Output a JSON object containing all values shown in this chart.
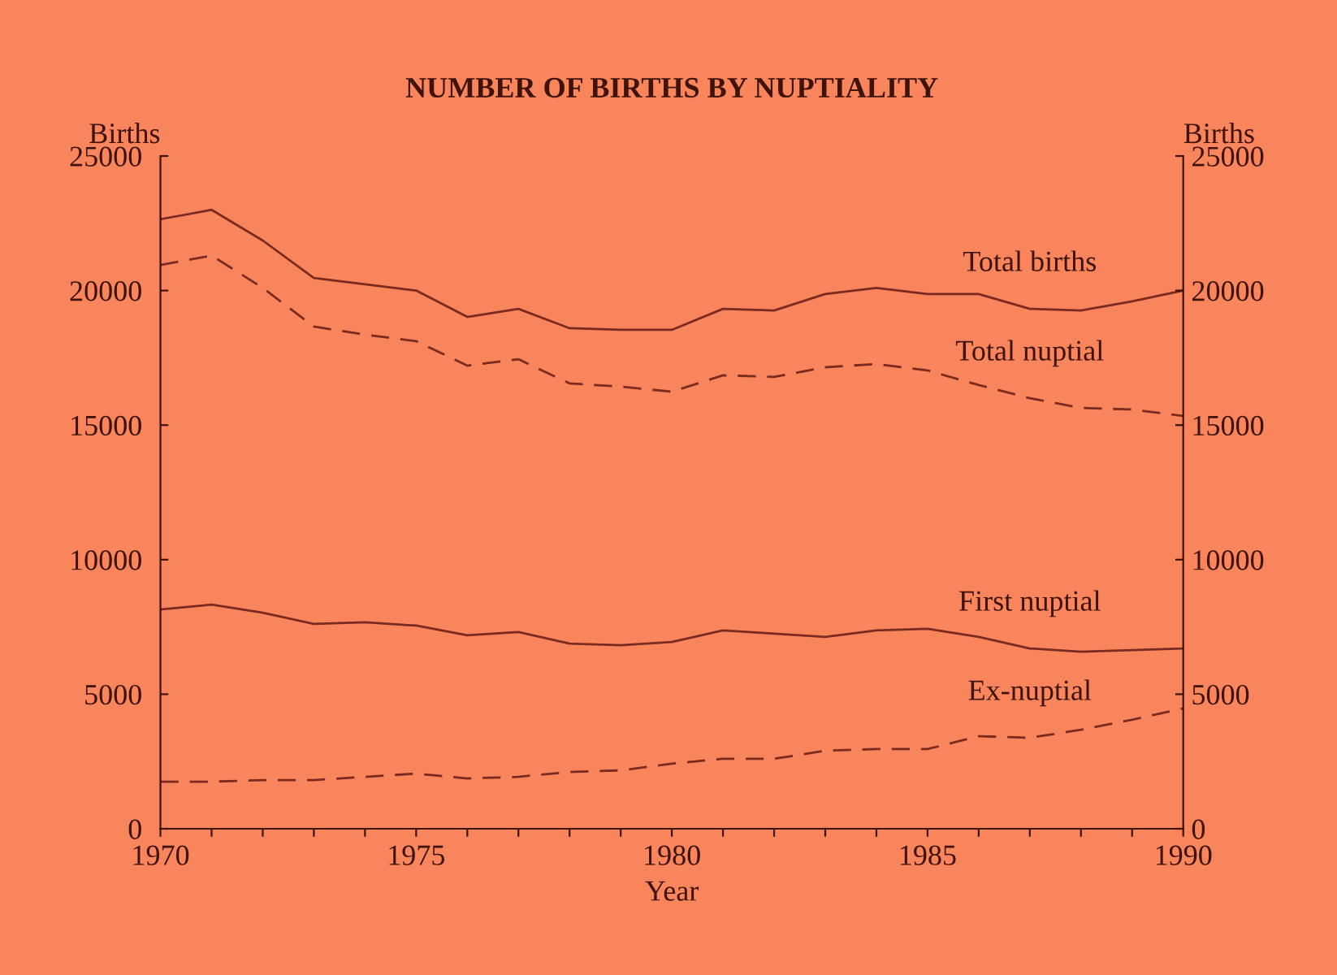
{
  "chart_data": {
    "type": "line",
    "title": "NUMBER OF BIRTHS BY NUPTIALITY",
    "xlabel": "Year",
    "ylabel": "Births",
    "y2label": "Births",
    "x": [
      1970,
      1971,
      1972,
      1973,
      1974,
      1975,
      1976,
      1977,
      1978,
      1979,
      1980,
      1981,
      1982,
      1983,
      1984,
      1985,
      1986,
      1987,
      1988,
      1989,
      1990
    ],
    "series": [
      {
        "name": "Total births",
        "color": "#7a2a1e",
        "line_style": "solid",
        "values": [
          22650,
          23000,
          21860,
          20470,
          20230,
          20000,
          19020,
          19320,
          18600,
          18540,
          18540,
          19320,
          19260,
          19870,
          20100,
          19870,
          19870,
          19320,
          19260,
          19600,
          20000
        ]
      },
      {
        "name": "Total nuptial",
        "color": "#7a2a1e",
        "line_style": "dashed",
        "values": [
          20950,
          21300,
          20100,
          18660,
          18360,
          18120,
          17210,
          17450,
          16550,
          16430,
          16240,
          16850,
          16790,
          17150,
          17270,
          17030,
          16490,
          16000,
          15640,
          15580,
          15340
        ]
      },
      {
        "name": "First nuptial",
        "color": "#7a2a1e",
        "line_style": "solid",
        "values": [
          8150,
          8330,
          8030,
          7610,
          7670,
          7550,
          7190,
          7310,
          6880,
          6820,
          6940,
          7370,
          7250,
          7130,
          7370,
          7430,
          7130,
          6700,
          6580,
          6640,
          6700
        ]
      },
      {
        "name": "Ex-nuptial",
        "color": "#7a2a1e",
        "line_style": "dashed",
        "values": [
          1750,
          1750,
          1810,
          1810,
          1930,
          2050,
          1870,
          1930,
          2110,
          2170,
          2420,
          2600,
          2600,
          2900,
          2960,
          2960,
          3440,
          3380,
          3680,
          4050,
          4470
        ]
      }
    ],
    "xlim": [
      1970,
      1990
    ],
    "xticks": [
      1970,
      {
        "value": 1971,
        "label": null
      },
      {
        "value": 1972,
        "label": null
      },
      {
        "value": 1973,
        "label": null
      },
      {
        "value": 1974,
        "label": null
      },
      1975,
      {
        "value": 1976,
        "label": null
      },
      {
        "value": 1977,
        "label": null
      },
      {
        "value": 1978,
        "label": null
      },
      {
        "value": 1979,
        "label": null
      },
      1980,
      {
        "value": 1981,
        "label": null
      },
      {
        "value": 1982,
        "label": null
      },
      {
        "value": 1983,
        "label": null
      },
      {
        "value": 1984,
        "label": null
      },
      1985,
      {
        "value": 1986,
        "label": null
      },
      {
        "value": 1987,
        "label": null
      },
      {
        "value": 1988,
        "label": null
      },
      {
        "value": 1989,
        "label": null
      },
      1990
    ],
    "ylim": [
      0,
      25000
    ],
    "yticks": [
      0,
      5000,
      10000,
      15000,
      20000,
      25000
    ],
    "y2lim": [
      0,
      25000
    ],
    "y2ticks": [
      0,
      5000,
      10000,
      15000,
      20000,
      25000
    ],
    "grid": false,
    "legend": false,
    "marker": "none"
  }
}
